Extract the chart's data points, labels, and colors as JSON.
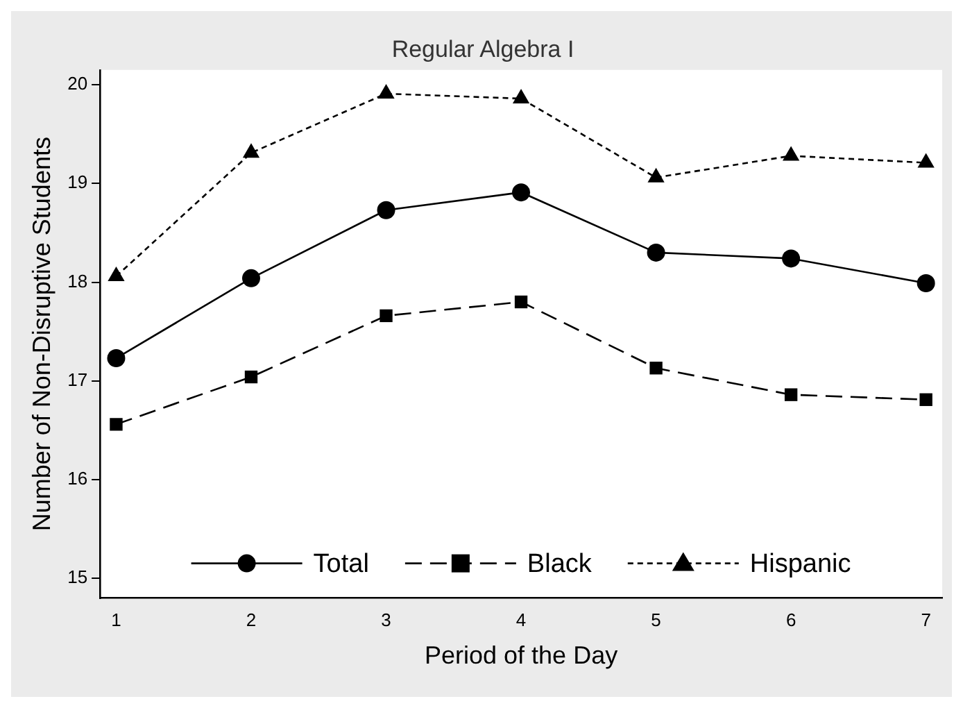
{
  "chart_data": {
    "type": "line",
    "title": "Regular Algebra I",
    "xlabel": "Period of the Day",
    "ylabel": "Number of Non-Disruptive Students",
    "x": [
      1,
      2,
      3,
      4,
      5,
      6,
      7
    ],
    "xlim": [
      0.88,
      7.12
    ],
    "xticks": [
      1,
      2,
      3,
      4,
      5,
      6,
      7
    ],
    "ylim": [
      14.8,
      20.15
    ],
    "yticks": [
      15,
      16,
      17,
      18,
      19,
      20
    ],
    "grid": false,
    "legend": "bottom",
    "series": [
      {
        "name": "Total",
        "color": "#000000",
        "marker": "circle",
        "line_style": "solid",
        "values": [
          17.23,
          18.04,
          18.73,
          18.91,
          18.3,
          18.24,
          17.99
        ]
      },
      {
        "name": "Black",
        "color": "#000000",
        "marker": "square",
        "line_style": "dashed",
        "values": [
          16.56,
          17.04,
          17.66,
          17.8,
          17.13,
          16.86,
          16.81
        ]
      },
      {
        "name": "Hispanic",
        "color": "#000000",
        "marker": "triangle",
        "line_style": "dotted",
        "values": [
          18.06,
          19.31,
          19.91,
          19.86,
          19.06,
          19.28,
          19.21
        ]
      }
    ]
  }
}
